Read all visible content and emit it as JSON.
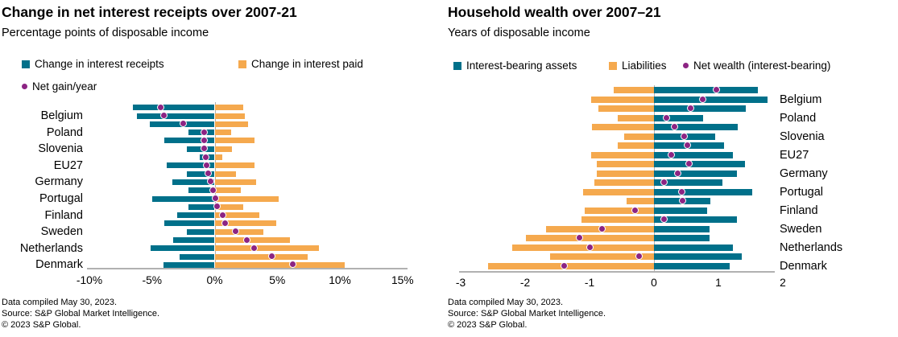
{
  "colors": {
    "teal": "#00708a",
    "orange": "#f5a94e",
    "purple": "#8c2483",
    "axis": "#b1b1b1",
    "text": "#000000"
  },
  "charts": [
    {
      "title": "Change in net interest receipts over 2007-21",
      "subtitle": "Percentage points of disposable income",
      "legend": [
        {
          "label": "Change in interest receipts",
          "marker": "square",
          "color_key": "teal"
        },
        {
          "label": "Change in interest paid",
          "marker": "square",
          "color_key": "orange"
        },
        {
          "label": "Net gain/year",
          "marker": "dot",
          "color_key": "purple"
        }
      ],
      "footnotes": [
        "Data compiled May 30, 2023.",
        "Source: S&P Global Market Intelligence.",
        "© 2023 S&P Global."
      ],
      "chart_data": {
        "type": "bar",
        "orientation": "horizontal-diverging",
        "note": "20 rows; every second row labeled",
        "categories": [
          "",
          "Belgium",
          "",
          "Poland",
          "",
          "Slovenia",
          "",
          "EU27",
          "",
          "Germany",
          "",
          "Portugal",
          "",
          "Finland",
          "",
          "Sweden",
          "",
          "Netherlands",
          "",
          "Denmark"
        ],
        "series": [
          {
            "name": "Change in interest receipts",
            "key": "receipts",
            "kind": "bar",
            "color_key": "teal",
            "values": [
              -6.5,
              -6.2,
              -5.2,
              -2.1,
              -4.0,
              -2.2,
              -1.2,
              -3.8,
              -2.2,
              -3.4,
              -2.1,
              -5.0,
              -2.1,
              -3.0,
              -4.0,
              -2.2,
              -3.3,
              -5.1,
              -2.8,
              -4.1
            ]
          },
          {
            "name": "Change in interest paid",
            "key": "paid",
            "kind": "bar",
            "color_key": "orange",
            "values": [
              2.3,
              2.4,
              2.7,
              1.3,
              3.2,
              1.4,
              0.6,
              3.2,
              1.7,
              3.3,
              2.1,
              5.1,
              2.3,
              3.6,
              4.9,
              3.9,
              6.0,
              8.3,
              7.4,
              10.4
            ]
          },
          {
            "name": "Net gain/year",
            "key": "net-gain",
            "kind": "point",
            "color_key": "purple",
            "values": [
              -4.3,
              -4.0,
              -2.5,
              -0.8,
              -0.8,
              -0.8,
              -0.7,
              -0.6,
              -0.5,
              -0.3,
              -0.1,
              0.1,
              0.2,
              0.7,
              0.9,
              1.7,
              2.6,
              3.2,
              4.6,
              6.3
            ]
          }
        ],
        "xlim": [
          -10,
          15
        ],
        "ticks": [
          {
            "v": -10,
            "label": "-10%"
          },
          {
            "v": -5,
            "label": "-5%"
          },
          {
            "v": 0,
            "label": "0%"
          },
          {
            "v": 5,
            "label": "5%"
          },
          {
            "v": 10,
            "label": "10%"
          },
          {
            "v": 15,
            "label": "15%"
          }
        ],
        "label_side": "left",
        "grid": false
      }
    },
    {
      "title": "Household wealth over 2007–21",
      "subtitle": "Years of disposable income",
      "legend": [
        {
          "label": "Interest-bearing assets",
          "marker": "square",
          "color_key": "teal"
        },
        {
          "label": "Liabilities",
          "marker": "square",
          "color_key": "orange"
        },
        {
          "label": "Net wealth (interest-bearing)",
          "marker": "dot",
          "color_key": "purple"
        }
      ],
      "footnotes": [
        "Data compiled May 30, 2023.",
        "Source: S&P Global Market Intelligence.",
        "© 2023 S&P Global."
      ],
      "chart_data": {
        "type": "bar",
        "orientation": "horizontal-diverging",
        "note": "20 rows; every second row labeled",
        "categories": [
          "",
          "Belgium",
          "",
          "Poland",
          "",
          "Slovenia",
          "",
          "EU27",
          "",
          "Germany",
          "",
          "Portugal",
          "",
          "Finland",
          "",
          "Sweden",
          "",
          "Netherlands",
          "",
          "Denmark"
        ],
        "series": [
          {
            "name": "Interest-bearing assets",
            "key": "assets",
            "kind": "bar",
            "color_key": "teal",
            "values": [
              1.61,
              1.76,
              1.43,
              0.76,
              1.3,
              0.95,
              1.09,
              1.23,
              1.41,
              1.29,
              1.06,
              1.53,
              0.88,
              0.82,
              1.29,
              0.86,
              0.86,
              1.23,
              1.36,
              1.18
            ]
          },
          {
            "name": "Liabilities",
            "key": "liabilities",
            "kind": "bar",
            "color_key": "orange",
            "values": [
              -0.63,
              -0.98,
              -0.86,
              -0.56,
              -0.96,
              -0.46,
              -0.56,
              -0.98,
              -0.89,
              -0.89,
              -0.92,
              -1.1,
              -0.42,
              -1.08,
              -1.12,
              -1.67,
              -1.99,
              -2.2,
              -1.61,
              -2.58
            ]
          },
          {
            "name": "Net wealth (interest-bearing)",
            "key": "net-wealth",
            "kind": "point",
            "color_key": "purple",
            "values": [
              0.98,
              0.76,
              0.57,
              0.2,
              0.33,
              0.48,
              0.53,
              0.27,
              0.55,
              0.38,
              0.16,
              0.44,
              0.45,
              -0.29,
              0.16,
              -0.8,
              -1.15,
              -0.99,
              -0.23,
              -1.39
            ]
          }
        ],
        "xlim": [
          -3,
          2
        ],
        "ticks": [
          {
            "v": -3,
            "label": "-3"
          },
          {
            "v": -2,
            "label": "-2"
          },
          {
            "v": -1,
            "label": "-1"
          },
          {
            "v": 0,
            "label": "0"
          },
          {
            "v": 1,
            "label": "1"
          },
          {
            "v": 2,
            "label": "2"
          }
        ],
        "label_side": "right",
        "grid": false
      }
    }
  ]
}
